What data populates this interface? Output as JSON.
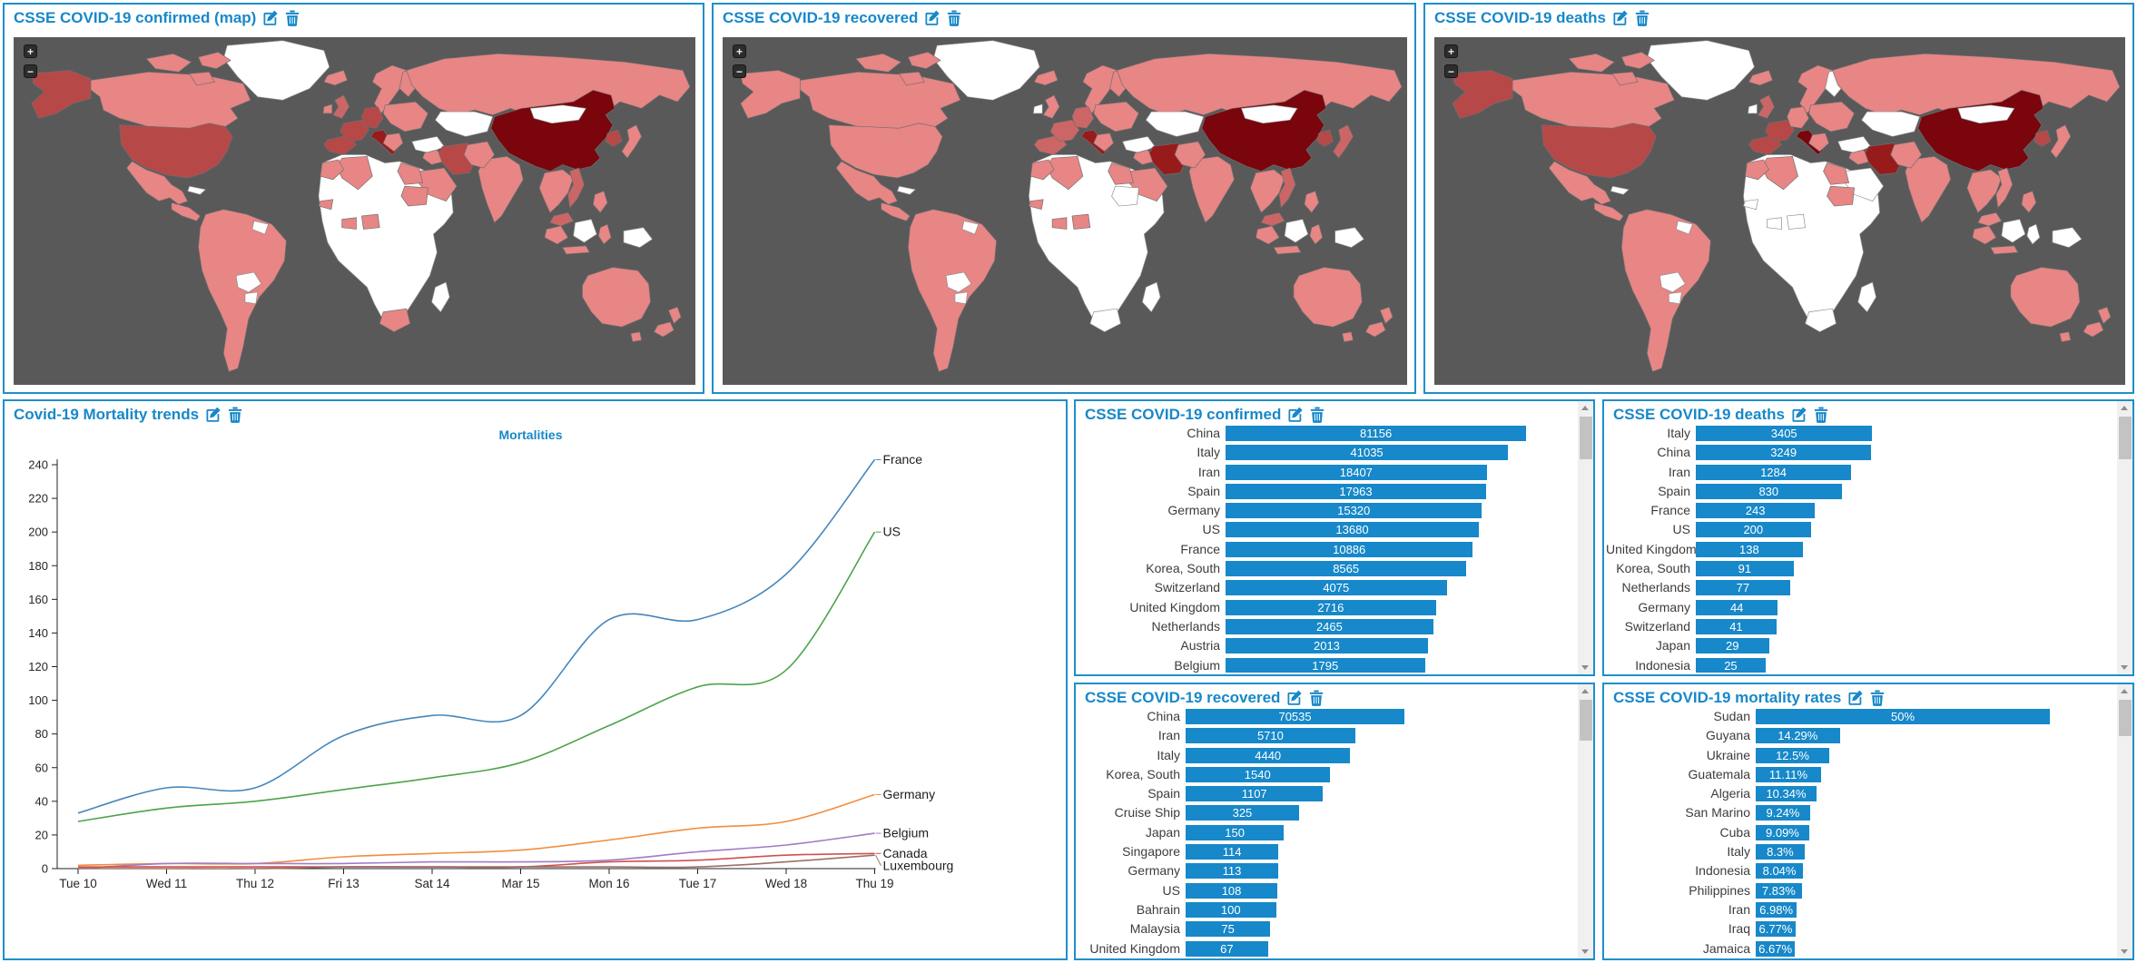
{
  "theme": {
    "accent_blue": "#1788c9",
    "panel_border": "#1e8fcc",
    "bar_color": "#1788c9",
    "map_ocean": "#595959",
    "scrollbar_track": "#f0f0f0",
    "scrollbar_thumb": "#c3c3c3"
  },
  "map_palette": {
    "none": "#ffffff",
    "low": "#e88585",
    "med": "#cc6666",
    "high": "#b74848",
    "vhigh": "#981b1b",
    "max": "#7a050c"
  },
  "controls": {
    "zoom_in_label": "+",
    "zoom_out_label": "−"
  },
  "panels": {
    "map_confirmed": {
      "title": "CSSE COVID-19 confirmed (map)"
    },
    "map_recovered": {
      "title": "CSSE COVID-19 recovered"
    },
    "map_deaths": {
      "title": "CSSE COVID-19 deaths"
    },
    "trends": {
      "title": "Covid-19 Mortality trends"
    },
    "bar_confirmed": {
      "title": "CSSE COVID-19 confirmed"
    },
    "bar_deaths": {
      "title": "CSSE COVID-19 deaths"
    },
    "bar_recovered": {
      "title": "CSSE COVID-19 recovered"
    },
    "bar_mortality": {
      "title": "CSSE COVID-19 mortality rates"
    }
  },
  "maps": {
    "confirmed": {
      "greenland": "none",
      "canada": "low",
      "can_isl1": "low",
      "can_isl2": "low",
      "can_isl3": "low",
      "alaska": "high",
      "us": "high",
      "mexico": "low",
      "camerica": "low",
      "cuba": "none",
      "sa_main": "low",
      "bolivia": "none",
      "paraguay": "none",
      "guyana": "none",
      "scandinavia": "low",
      "finland": "low",
      "iceland": "low",
      "uk": "med",
      "ireland": "low",
      "iberia": "high",
      "france": "high",
      "germany": "high",
      "italy": "vhigh",
      "easteur": "low",
      "balkans": "low",
      "turkey": "none",
      "russia": "low",
      "kazakh": "none",
      "iraq": "low",
      "iran": "high",
      "saudi": "low",
      "egypt": "low",
      "sudan": "low",
      "algeria": "low",
      "morocco": "low",
      "senegal": "low",
      "ghana": "low",
      "nigeria": "low",
      "safrica": "low",
      "madagascar": "none",
      "africa_base": "none",
      "india": "low",
      "pakistan": "low",
      "china": "max",
      "mongolia": "none",
      "korea": "high",
      "japan": "low",
      "indochina": "low",
      "vietnam": "med",
      "malaysia": "med",
      "philippines": "low",
      "sumatra": "low",
      "java": "low",
      "borneo": "none",
      "sulawesi": "low",
      "newguinea": "none",
      "australia": "low",
      "tasmania": "low",
      "nz_n": "low",
      "nz_s": "low"
    },
    "recovered": {
      "greenland": "none",
      "canada": "low",
      "can_isl1": "low",
      "can_isl2": "low",
      "can_isl3": "low",
      "alaska": "low",
      "us": "low",
      "mexico": "low",
      "camerica": "low",
      "cuba": "none",
      "sa_main": "low",
      "bolivia": "none",
      "paraguay": "none",
      "guyana": "none",
      "scandinavia": "low",
      "finland": "low",
      "iceland": "low",
      "uk": "low",
      "ireland": "none",
      "iberia": "med",
      "france": "med",
      "germany": "med",
      "italy": "vhigh",
      "easteur": "low",
      "balkans": "low",
      "turkey": "none",
      "russia": "low",
      "kazakh": "none",
      "iraq": "low",
      "iran": "vhigh",
      "saudi": "low",
      "egypt": "low",
      "sudan": "none",
      "algeria": "low",
      "morocco": "low",
      "senegal": "low",
      "ghana": "low",
      "nigeria": "low",
      "safrica": "none",
      "madagascar": "none",
      "africa_base": "none",
      "india": "low",
      "pakistan": "low",
      "china": "max",
      "mongolia": "none",
      "korea": "high",
      "japan": "med",
      "indochina": "low",
      "vietnam": "med",
      "malaysia": "med",
      "philippines": "low",
      "sumatra": "low",
      "java": "low",
      "borneo": "none",
      "sulawesi": "low",
      "newguinea": "none",
      "australia": "low",
      "tasmania": "low",
      "nz_n": "low",
      "nz_s": "low"
    },
    "deaths": {
      "greenland": "none",
      "canada": "low",
      "can_isl1": "low",
      "can_isl2": "low",
      "can_isl3": "low",
      "alaska": "high",
      "us": "high",
      "mexico": "low",
      "camerica": "low",
      "cuba": "none",
      "sa_main": "low",
      "bolivia": "none",
      "paraguay": "none",
      "guyana": "none",
      "scandinavia": "low",
      "finland": "none",
      "iceland": "low",
      "uk": "med",
      "ireland": "none",
      "iberia": "high",
      "france": "high",
      "germany": "low",
      "italy": "max",
      "easteur": "low",
      "balkans": "low",
      "turkey": "none",
      "russia": "low",
      "kazakh": "none",
      "iraq": "low",
      "iran": "vhigh",
      "saudi": "none",
      "egypt": "low",
      "sudan": "low",
      "algeria": "low",
      "morocco": "low",
      "senegal": "none",
      "ghana": "none",
      "nigeria": "none",
      "safrica": "none",
      "madagascar": "none",
      "africa_base": "none",
      "india": "low",
      "pakistan": "low",
      "china": "max",
      "mongolia": "none",
      "korea": "high",
      "japan": "low",
      "indochina": "low",
      "vietnam": "low",
      "malaysia": "low",
      "philippines": "low",
      "sumatra": "low",
      "java": "low",
      "borneo": "none",
      "sulawesi": "none",
      "newguinea": "none",
      "australia": "low",
      "tasmania": "low",
      "nz_n": "low",
      "nz_s": "low"
    }
  },
  "chart_data": [
    {
      "id": "trends",
      "type": "line",
      "title": "Mortalities",
      "x_ticks": [
        "Tue 10",
        "Wed 11",
        "Thu 12",
        "Fri 13",
        "Sat 14",
        "Mar 15",
        "Mon 16",
        "Tue 17",
        "Wed 18",
        "Thu 19"
      ],
      "ylim": [
        0,
        240
      ],
      "ytick_step": 20,
      "legend_position": "line-end",
      "grid": false,
      "series": [
        {
          "name": "France",
          "color": "#4486bd",
          "values": [
            33,
            48,
            48,
            79,
            91,
            91,
            148,
            148,
            175,
            243
          ]
        },
        {
          "name": "US",
          "color": "#4ba44b",
          "values": [
            28,
            36,
            40,
            47,
            54,
            63,
            85,
            108,
            118,
            200
          ]
        },
        {
          "name": "Germany",
          "color": "#f28d3e",
          "values": [
            2,
            3,
            3,
            7,
            9,
            11,
            17,
            24,
            28,
            44
          ]
        },
        {
          "name": "Belgium",
          "color": "#a07cc5",
          "values": [
            0,
            3,
            3,
            3,
            4,
            4,
            5,
            10,
            14,
            21
          ]
        },
        {
          "name": "Canada",
          "color": "#d14f4f",
          "values": [
            1,
            1,
            1,
            1,
            1,
            1,
            4,
            5,
            8,
            9
          ]
        },
        {
          "name": "Luxembourg",
          "color": "#9c7064",
          "values": [
            0,
            0,
            0,
            1,
            1,
            1,
            1,
            1,
            4,
            8
          ]
        }
      ]
    },
    {
      "id": "confirmed",
      "type": "bar",
      "orientation": "horizontal",
      "scale": "log",
      "categories": [
        "China",
        "Italy",
        "Iran",
        "Spain",
        "Germany",
        "US",
        "France",
        "Korea, South",
        "Switzerland",
        "United Kingdom",
        "Netherlands",
        "Austria",
        "Belgium"
      ],
      "values": [
        81156,
        41035,
        18407,
        17963,
        15320,
        13680,
        10886,
        8565,
        4075,
        2716,
        2465,
        2013,
        1795
      ],
      "labels": [
        "81156",
        "41035",
        "18407",
        "17963",
        "15320",
        "13680",
        "10886",
        "8565",
        "4075",
        "2716",
        "2465",
        "2013",
        "1795"
      ]
    },
    {
      "id": "deaths",
      "type": "bar",
      "orientation": "horizontal",
      "scale": "log",
      "categories": [
        "Italy",
        "China",
        "Iran",
        "Spain",
        "France",
        "US",
        "United Kingdom",
        "Korea, South",
        "Netherlands",
        "Germany",
        "Switzerland",
        "Japan",
        "Indonesia"
      ],
      "values": [
        3405,
        3249,
        1284,
        830,
        243,
        200,
        138,
        91,
        77,
        44,
        41,
        29,
        25
      ],
      "labels": [
        "3405",
        "3249",
        "1284",
        "830",
        "243",
        "200",
        "138",
        "91",
        "77",
        "44",
        "41",
        "29",
        "25"
      ]
    },
    {
      "id": "recovered",
      "type": "bar",
      "orientation": "horizontal",
      "scale": "log",
      "categories": [
        "China",
        "Iran",
        "Italy",
        "Korea, South",
        "Spain",
        "Cruise Ship",
        "Japan",
        "Singapore",
        "Germany",
        "US",
        "Bahrain",
        "Malaysia",
        "United Kingdom"
      ],
      "values": [
        70535,
        5710,
        4440,
        1540,
        1107,
        325,
        150,
        114,
        113,
        108,
        100,
        75,
        67
      ],
      "labels": [
        "70535",
        "5710",
        "4440",
        "1540",
        "1107",
        "325",
        "150",
        "114",
        "113",
        "108",
        "100",
        "75",
        "67"
      ]
    },
    {
      "id": "mortality",
      "type": "bar",
      "orientation": "horizontal",
      "scale": "linear",
      "categories": [
        "Sudan",
        "Guyana",
        "Ukraine",
        "Guatemala",
        "Algeria",
        "San Marino",
        "Cuba",
        "Italy",
        "Indonesia",
        "Philippines",
        "Iran",
        "Iraq",
        "Jamaica"
      ],
      "values": [
        50,
        14.29,
        12.5,
        11.11,
        10.34,
        9.24,
        9.09,
        8.3,
        8.04,
        7.83,
        6.98,
        6.77,
        6.67
      ],
      "labels": [
        "50%",
        "14.29%",
        "12.5%",
        "11.11%",
        "10.34%",
        "9.24%",
        "9.09%",
        "8.3%",
        "8.04%",
        "7.83%",
        "6.98%",
        "6.77%",
        "6.67%"
      ]
    }
  ]
}
